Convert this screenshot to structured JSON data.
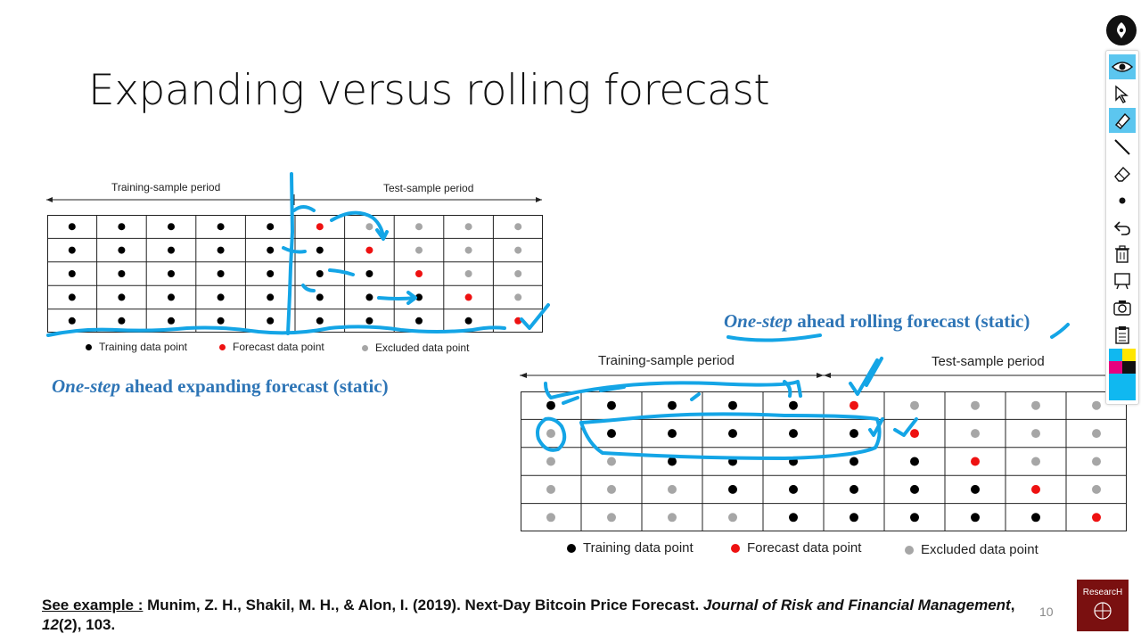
{
  "slide": {
    "title": "Expanding versus rolling forecast",
    "page_number": "10"
  },
  "left_diagram": {
    "training_label": "Training-sample period",
    "test_label": "Test-sample period",
    "caption_italic": "One-step",
    "caption_rest": " ahead expanding forecast (static)",
    "legend": {
      "training": "Training data point",
      "forecast": "Forecast data point",
      "excluded": "Excluded data point"
    },
    "grid": [
      [
        "T",
        "T",
        "T",
        "T",
        "T",
        "F",
        "X",
        "X",
        "X",
        "X"
      ],
      [
        "T",
        "T",
        "T",
        "T",
        "T",
        "T",
        "F",
        "X",
        "X",
        "X"
      ],
      [
        "T",
        "T",
        "T",
        "T",
        "T",
        "T",
        "T",
        "F",
        "X",
        "X"
      ],
      [
        "T",
        "T",
        "T",
        "T",
        "T",
        "T",
        "T",
        "T",
        "F",
        "X"
      ],
      [
        "T",
        "T",
        "T",
        "T",
        "T",
        "T",
        "T",
        "T",
        "T",
        "F"
      ]
    ]
  },
  "right_diagram": {
    "training_label": "Training-sample period",
    "test_label": "Test-sample period",
    "caption_italic": "One-step",
    "caption_rest": " ahead rolling forecast (static)",
    "legend": {
      "training": "Training data point",
      "forecast": "Forecast data point",
      "excluded": "Excluded data point"
    },
    "grid": [
      [
        "T",
        "T",
        "T",
        "T",
        "T",
        "F",
        "X",
        "X",
        "X",
        "X"
      ],
      [
        "X",
        "T",
        "T",
        "T",
        "T",
        "T",
        "F",
        "X",
        "X",
        "X"
      ],
      [
        "X",
        "X",
        "T",
        "T",
        "T",
        "T",
        "T",
        "F",
        "X",
        "X"
      ],
      [
        "X",
        "X",
        "X",
        "T",
        "T",
        "T",
        "T",
        "T",
        "F",
        "X"
      ],
      [
        "X",
        "X",
        "X",
        "X",
        "T",
        "T",
        "T",
        "T",
        "T",
        "F"
      ]
    ]
  },
  "reference": {
    "prefix": "See example :",
    "authors": " Munim, Z. H., Shakil, M. H., & Alon, I. (2019). Next-Day Bitcoin Price Forecast. ",
    "journal": "Journal of Risk and Financial Management",
    "sep": ", ",
    "volume": "12",
    "issue_pages": "(2), 103."
  },
  "logo": {
    "text": "ResearcH"
  },
  "colors": {
    "training": "#000000",
    "forecast": "#ee1111",
    "excluded": "#a6a6a6",
    "caption": "#2e75b6",
    "ink": "#14a5e6",
    "toolbar_active": "#5cc6ef"
  },
  "toolbar": {
    "tools": [
      "eye-icon",
      "pointer-icon",
      "highlighter-icon",
      "pen-line-icon",
      "eraser-icon",
      "dot-icon",
      "undo-icon",
      "trash-icon",
      "whiteboard-icon",
      "camera-icon",
      "clipboard-icon",
      "color-palette-icon"
    ]
  }
}
